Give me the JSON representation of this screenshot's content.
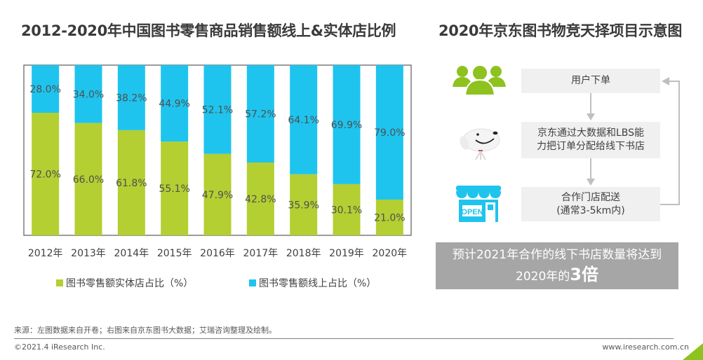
{
  "left_panel": {
    "title": "2012-2020年中国图书零售商品销售额线上&实体店比例"
  },
  "right_panel": {
    "title": "2020年京东图书物竞天择项目示意图",
    "flow": [
      {
        "icon": "users-group-icon",
        "lines": [
          "用户下单"
        ]
      },
      {
        "icon": "jd-dog-mascot-icon",
        "lines": [
          "京东通过大数据和LBS能",
          "力把订单分配给线下书店"
        ]
      },
      {
        "icon": "open-store-icon",
        "lines": [
          "合作门店配送",
          "(通常3-5km内)"
        ]
      }
    ],
    "forecast": {
      "line1": "预计2021年合作的线下书店数量将达到",
      "line2_prefix": "2020年的",
      "line2_highlight": "3倍"
    }
  },
  "footer": {
    "source": "来源：左图数据来自开卷；右图来自京东图书大数据；艾瑞咨询整理及绘制。",
    "copyright": "©2021.4 iResearch Inc.",
    "website": "www.iresearch.com.cn"
  },
  "colors": {
    "offline": "#b3cf32",
    "online": "#1ec4ee",
    "flow_box": "#f0f0f0",
    "forecast_bg": "#a6a6a6",
    "accent_green": "#8dc21f"
  },
  "chart_data": {
    "type": "bar",
    "stacked": true,
    "title": "2012-2020年中国图书零售商品销售额线上&实体店比例",
    "xlabel": "",
    "ylabel": "",
    "ylim": [
      0,
      100
    ],
    "grid": false,
    "legend_position": "bottom",
    "categories": [
      "2012年",
      "2013年",
      "2014年",
      "2015年",
      "2016年",
      "2017年",
      "2018年",
      "2019年",
      "2020年"
    ],
    "series": [
      {
        "name": "图书零售额实体店占比（%）",
        "color": "#b3cf32",
        "values": [
          72.0,
          66.0,
          61.8,
          55.1,
          47.9,
          42.8,
          35.9,
          30.1,
          21.0
        ]
      },
      {
        "name": "图书零售额线上占比（%）",
        "color": "#1ec4ee",
        "values": [
          28.0,
          34.0,
          38.2,
          44.9,
          52.1,
          57.2,
          64.1,
          69.9,
          79.0
        ]
      }
    ]
  }
}
